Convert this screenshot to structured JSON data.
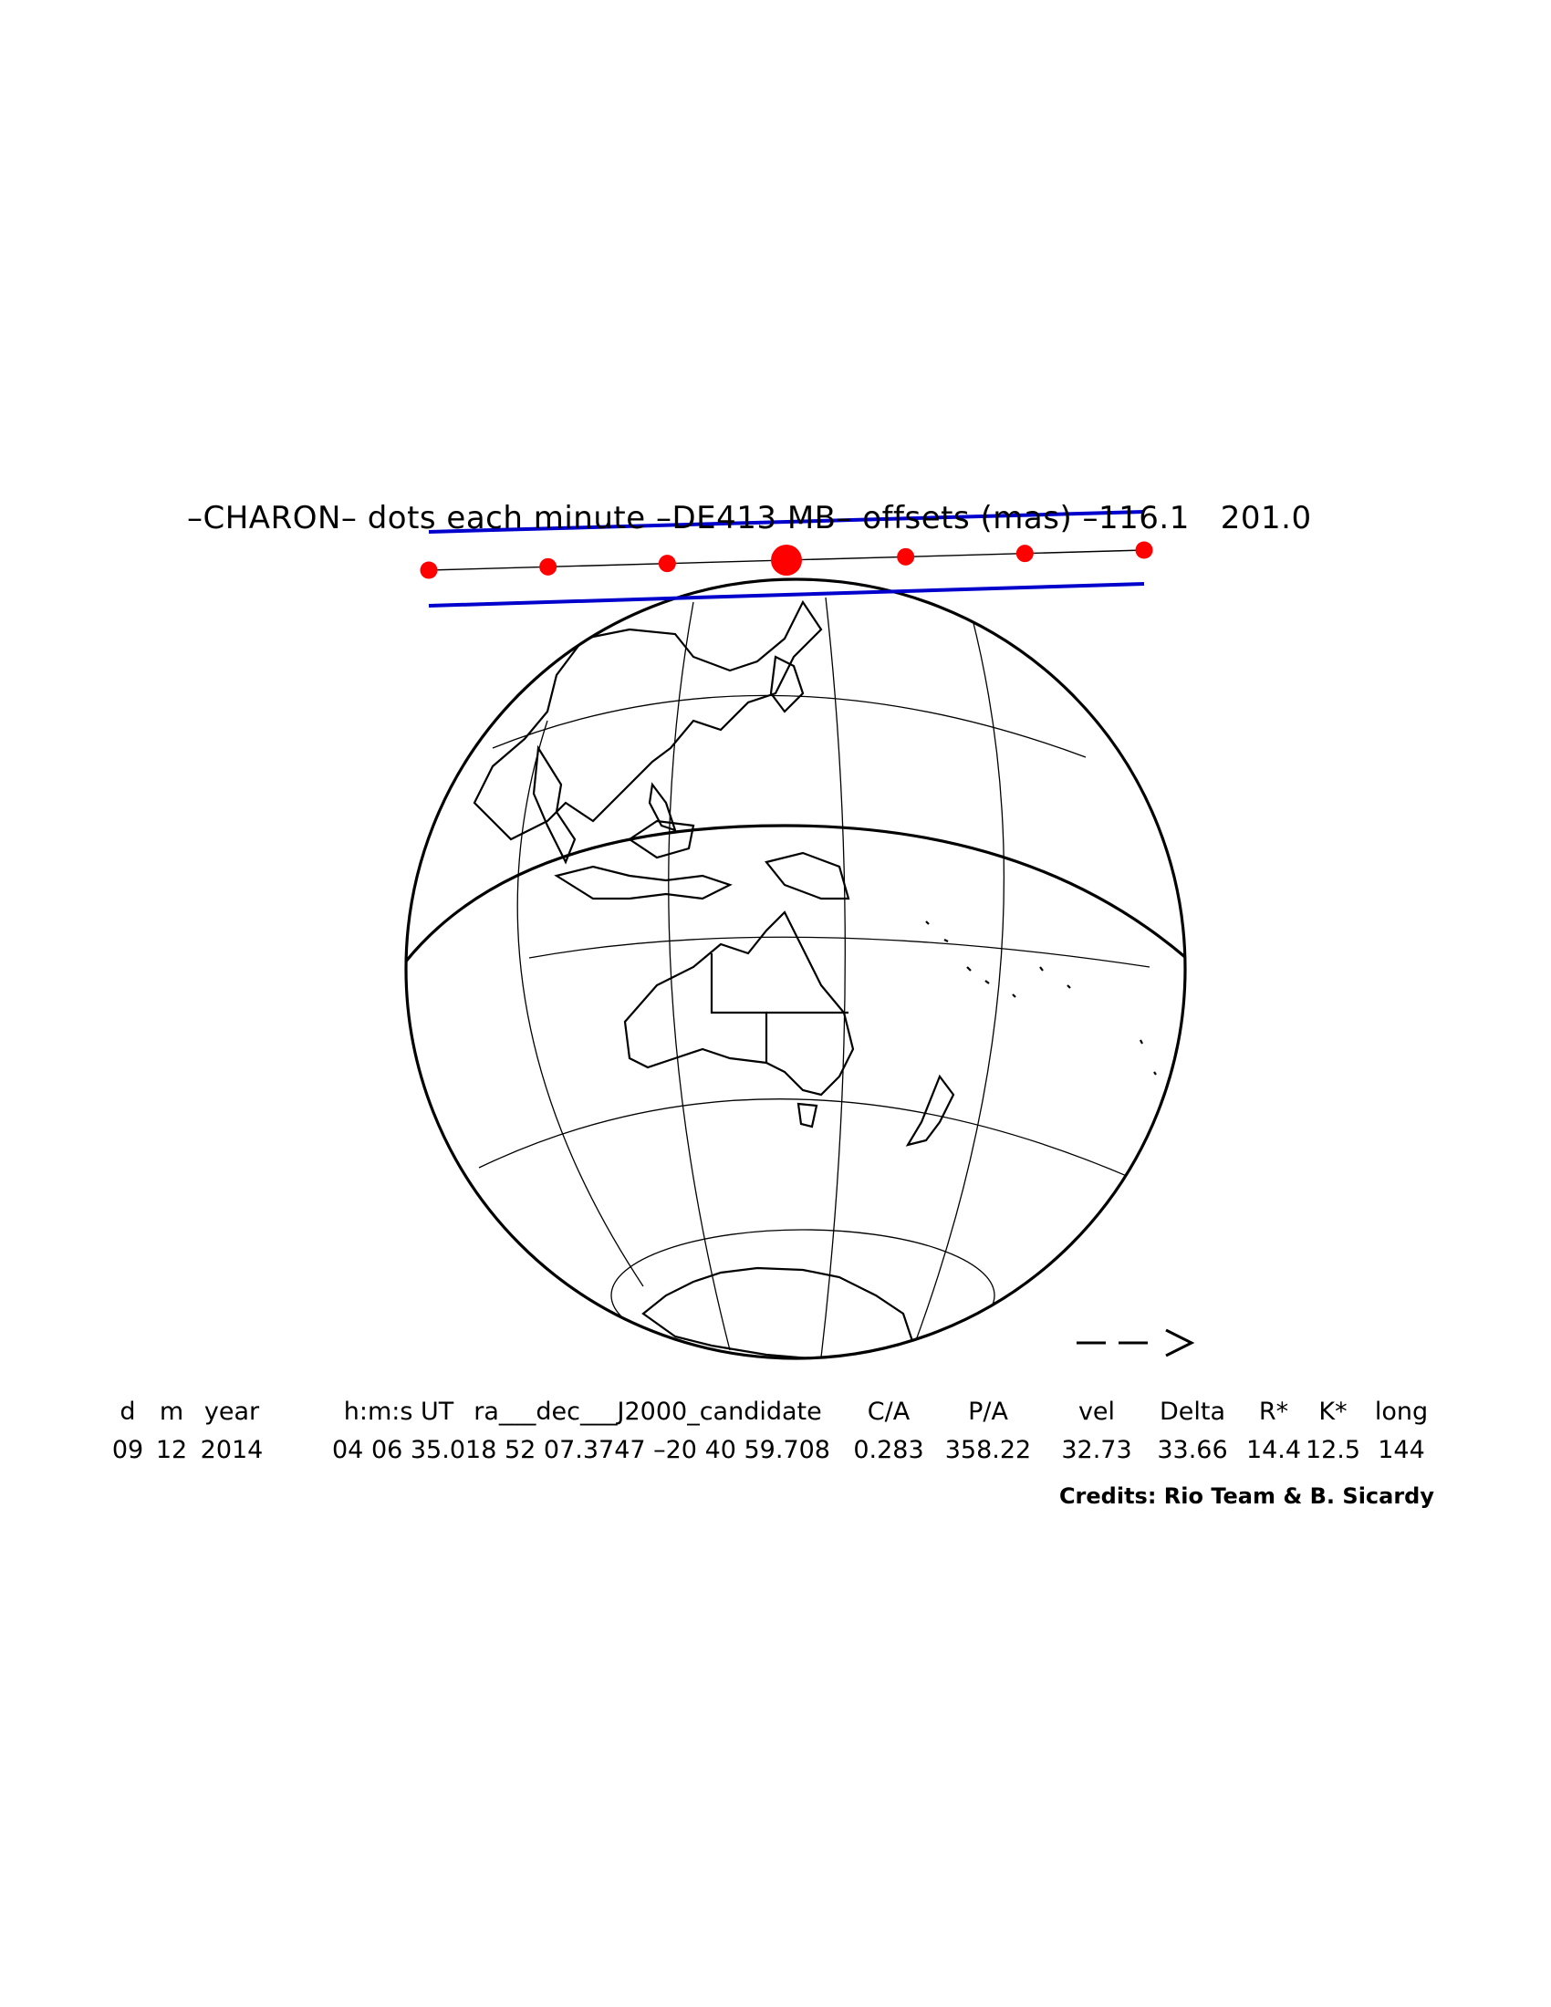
{
  "title": "–CHARON– dots each minute –DE413 MB– offsets (mas) –116.1   201.0",
  "arrow": "– – >",
  "table": {
    "headers": [
      "d",
      "m",
      "year",
      "h:m:s UT",
      "ra___dec___J2000_candidate",
      "C/A",
      "P/A",
      "vel",
      "Delta",
      "R*",
      "K*",
      "long"
    ],
    "values": [
      "09",
      "12",
      "2014",
      "04 06 35.0",
      "18 52 07.3747 –20 40 59.708",
      "0.283",
      "358.22",
      "32.73",
      "33.66",
      "14.4",
      "12.5",
      "144"
    ]
  },
  "credits": "Credits: Rio Team & B. Sicardy",
  "colors": {
    "track_dots": "#ff0000",
    "limit_lines": "#0000cc",
    "shadow": "#cccccc",
    "ink": "#000000"
  },
  "track": {
    "dot_count": 7,
    "closest_approach_index": 3
  }
}
